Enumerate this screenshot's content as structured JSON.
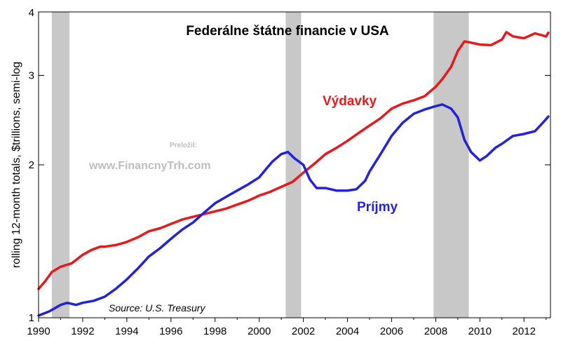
{
  "colors": {
    "expenditures": "#e8191c",
    "receipts": "#2222dd",
    "recession": "#c8c8c8",
    "axis": "#000000",
    "watermark": "#bdbdbd"
  },
  "chart_data": {
    "type": "line",
    "title": "Federálne štátne financie v USA",
    "ylabel": "rolling 12-month totals, $trillions, semi-log",
    "yscale": "log",
    "ylim": [
      1,
      4
    ],
    "xlim": [
      1990,
      2013.2
    ],
    "x_ticks": [
      "1990",
      "1992",
      "1994",
      "1996",
      "1998",
      "2000",
      "2002",
      "2004",
      "2006",
      "2008",
      "2010",
      "2012"
    ],
    "y_ticks": [
      "1",
      "2",
      "3",
      "4"
    ],
    "recessions": [
      [
        1990.6,
        1991.4
      ],
      [
        2001.2,
        2001.9
      ],
      [
        2007.9,
        2009.5
      ]
    ],
    "annotations": {
      "translated_by": "Preložil:",
      "website": "www.FinancnyTrh.com",
      "source": "Source: U.S. Treasury"
    },
    "series": [
      {
        "name": "Výdavky",
        "color": "#e8191c",
        "points": [
          [
            1990.0,
            1.14
          ],
          [
            1990.3,
            1.18
          ],
          [
            1990.6,
            1.23
          ],
          [
            1991.0,
            1.26
          ],
          [
            1991.5,
            1.28
          ],
          [
            1992.0,
            1.33
          ],
          [
            1992.4,
            1.36
          ],
          [
            1992.8,
            1.38
          ],
          [
            1993.0,
            1.38
          ],
          [
            1993.5,
            1.39
          ],
          [
            1994.0,
            1.41
          ],
          [
            1994.5,
            1.44
          ],
          [
            1995.0,
            1.48
          ],
          [
            1995.5,
            1.5
          ],
          [
            1996.0,
            1.53
          ],
          [
            1996.5,
            1.56
          ],
          [
            1997.0,
            1.58
          ],
          [
            1997.5,
            1.6
          ],
          [
            1998.0,
            1.62
          ],
          [
            1998.5,
            1.64
          ],
          [
            1999.0,
            1.67
          ],
          [
            1999.5,
            1.7
          ],
          [
            2000.0,
            1.74
          ],
          [
            2000.5,
            1.77
          ],
          [
            2001.0,
            1.81
          ],
          [
            2001.5,
            1.85
          ],
          [
            2002.0,
            1.93
          ],
          [
            2002.5,
            2.01
          ],
          [
            2003.0,
            2.1
          ],
          [
            2003.5,
            2.16
          ],
          [
            2004.0,
            2.23
          ],
          [
            2004.5,
            2.31
          ],
          [
            2005.0,
            2.39
          ],
          [
            2005.5,
            2.47
          ],
          [
            2006.0,
            2.58
          ],
          [
            2006.5,
            2.64
          ],
          [
            2007.0,
            2.68
          ],
          [
            2007.5,
            2.73
          ],
          [
            2008.0,
            2.85
          ],
          [
            2008.3,
            2.95
          ],
          [
            2008.7,
            3.12
          ],
          [
            2009.0,
            3.35
          ],
          [
            2009.3,
            3.5
          ],
          [
            2009.6,
            3.48
          ],
          [
            2010.0,
            3.45
          ],
          [
            2010.5,
            3.44
          ],
          [
            2011.0,
            3.53
          ],
          [
            2011.2,
            3.65
          ],
          [
            2011.5,
            3.58
          ],
          [
            2012.0,
            3.55
          ],
          [
            2012.5,
            3.63
          ],
          [
            2013.0,
            3.58
          ],
          [
            2013.1,
            3.64
          ]
        ]
      },
      {
        "name": "Príjmy",
        "color": "#2222dd",
        "points": [
          [
            1990.0,
            1.01
          ],
          [
            1990.5,
            1.03
          ],
          [
            1991.0,
            1.06
          ],
          [
            1991.3,
            1.07
          ],
          [
            1991.7,
            1.06
          ],
          [
            1992.0,
            1.07
          ],
          [
            1992.5,
            1.08
          ],
          [
            1993.0,
            1.1
          ],
          [
            1993.5,
            1.14
          ],
          [
            1994.0,
            1.19
          ],
          [
            1994.5,
            1.25
          ],
          [
            1995.0,
            1.32
          ],
          [
            1995.5,
            1.37
          ],
          [
            1996.0,
            1.43
          ],
          [
            1996.5,
            1.49
          ],
          [
            1997.0,
            1.54
          ],
          [
            1997.5,
            1.61
          ],
          [
            1998.0,
            1.68
          ],
          [
            1998.5,
            1.73
          ],
          [
            1999.0,
            1.78
          ],
          [
            1999.5,
            1.83
          ],
          [
            2000.0,
            1.89
          ],
          [
            2000.3,
            1.96
          ],
          [
            2000.6,
            2.03
          ],
          [
            2001.0,
            2.1
          ],
          [
            2001.3,
            2.12
          ],
          [
            2001.6,
            2.06
          ],
          [
            2002.0,
            2.0
          ],
          [
            2002.3,
            1.87
          ],
          [
            2002.6,
            1.8
          ],
          [
            2003.0,
            1.8
          ],
          [
            2003.5,
            1.78
          ],
          [
            2004.0,
            1.78
          ],
          [
            2004.4,
            1.79
          ],
          [
            2004.8,
            1.86
          ],
          [
            2005.0,
            1.94
          ],
          [
            2005.5,
            2.1
          ],
          [
            2006.0,
            2.28
          ],
          [
            2006.5,
            2.42
          ],
          [
            2007.0,
            2.52
          ],
          [
            2007.5,
            2.57
          ],
          [
            2008.0,
            2.61
          ],
          [
            2008.3,
            2.63
          ],
          [
            2008.7,
            2.58
          ],
          [
            2009.0,
            2.48
          ],
          [
            2009.3,
            2.24
          ],
          [
            2009.6,
            2.12
          ],
          [
            2010.0,
            2.04
          ],
          [
            2010.3,
            2.08
          ],
          [
            2010.7,
            2.16
          ],
          [
            2011.0,
            2.2
          ],
          [
            2011.5,
            2.28
          ],
          [
            2012.0,
            2.3
          ],
          [
            2012.5,
            2.33
          ],
          [
            2013.0,
            2.46
          ],
          [
            2013.1,
            2.49
          ]
        ]
      }
    ]
  }
}
